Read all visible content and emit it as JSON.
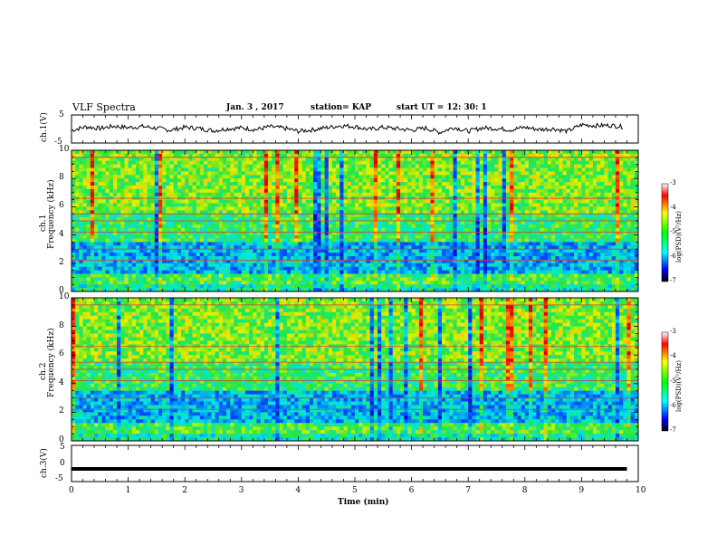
{
  "header": {
    "title": "VLF Spectra",
    "date": "Jan. 3 , 2017",
    "station": "station= KAP",
    "start_ut": "start UT = 12: 30: 1"
  },
  "chart_data": [
    {
      "type": "line",
      "panel": "ch1-waveform",
      "ylabel": "ch.1(V)",
      "ylim": [
        -5,
        5
      ],
      "yticks": [
        "5",
        "-5"
      ],
      "xlim": [
        0,
        10
      ],
      "x_unit": "min",
      "description_of_trace": "noisy black trace fluctuating roughly between -2 and 2 V",
      "x": [
        0,
        0.25,
        0.5,
        0.75,
        1,
        1.25,
        1.5,
        1.75,
        2,
        2.25,
        2.5,
        2.75,
        3,
        3.25,
        3.5,
        3.75,
        4,
        4.25,
        4.5,
        4.75,
        5,
        5.25,
        5.5,
        5.75,
        6,
        6.25,
        6.5,
        6.75,
        7,
        7.25,
        7.5,
        7.75,
        8,
        8.25,
        8.5,
        8.75,
        9,
        9.25,
        9.5,
        9.75
      ],
      "values": [
        -0.5,
        0.8,
        0.2,
        1.0,
        0.5,
        0.9,
        0.3,
        -0.4,
        0.6,
        0.2,
        -0.6,
        0.1,
        0.4,
        -0.2,
        0.8,
        0.3,
        -0.8,
        -0.3,
        0.5,
        1.2,
        0.9,
        -0.2,
        0.6,
        0.1,
        -0.4,
        0.3,
        -1.2,
        0.6,
        -0.8,
        0.4,
        0.2,
        -0.3,
        0.6,
        -0.2,
        0.1,
        -0.8,
        1.5,
        1.2,
        1.3,
        0.8
      ]
    },
    {
      "type": "heatmap",
      "panel": "ch1-spectrogram",
      "ylabel_top": "ch.1",
      "ylabel": "Frequency (kHz)",
      "ylim": [
        0,
        10
      ],
      "yticks": [
        "0",
        "2",
        "4",
        "6",
        "8",
        "10"
      ],
      "xlim": [
        0,
        10
      ],
      "colorbar": {
        "label": "log(PSD)(V²/Hz)",
        "range": [
          -7,
          -3
        ],
        "ticks": [
          "-3",
          "-4",
          "-5",
          "-6",
          "-7"
        ]
      }
    },
    {
      "type": "heatmap",
      "panel": "ch2-spectrogram",
      "ylabel_top": "ch.2",
      "ylabel": "Frequency (kHz)",
      "ylim": [
        0,
        10
      ],
      "yticks": [
        "0",
        "2",
        "4",
        "6",
        "8",
        "10"
      ],
      "xlim": [
        0,
        10
      ],
      "colorbar": {
        "label": "log(PSD)(V²/Hz)",
        "range": [
          -7,
          -3
        ],
        "ticks": [
          "-3",
          "-4",
          "-5",
          "-6",
          "-7"
        ]
      }
    },
    {
      "type": "line",
      "panel": "ch3-waveform",
      "ylabel": "ch.3(V)",
      "ylim": [
        -5,
        5
      ],
      "yticks": [
        "5",
        "0",
        "-5"
      ],
      "xlim": [
        0,
        10
      ],
      "x": [
        0,
        9.8
      ],
      "values": [
        -1.5,
        -1.5
      ]
    }
  ],
  "xaxis": {
    "label": "Time (min)",
    "ticks": [
      "0",
      "1",
      "2",
      "3",
      "4",
      "5",
      "6",
      "7",
      "8",
      "9",
      "10"
    ]
  }
}
